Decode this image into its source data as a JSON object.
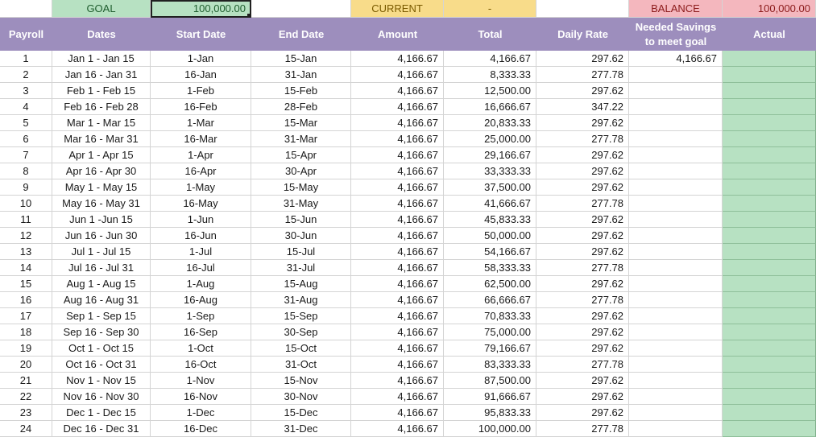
{
  "summary": {
    "goal_label": "GOAL",
    "goal_value": "100,000.00",
    "current_label": "CURRENT",
    "current_value": "-",
    "balance_label": "BALANCE",
    "balance_value": "100,000.00"
  },
  "colors": {
    "header_bg": "#9d8ebd",
    "goal_bg": "#b7e1c2",
    "current_bg": "#f8dc8a",
    "balance_bg": "#f4b7be",
    "actual_bg": "#b7e1c2"
  },
  "columns": [
    "Payroll",
    "Dates",
    "Start Date",
    "End Date",
    "Amount",
    "Total",
    "Daily Rate",
    "Needed Savings to meet goal",
    "Actual"
  ],
  "columns_display": {
    "needed_line1": "Needed Savings",
    "needed_line2": "to meet goal"
  },
  "rows": [
    {
      "payroll": "1",
      "dates": "Jan 1 - Jan 15",
      "start": "1-Jan",
      "end": "15-Jan",
      "amount": "4,166.67",
      "total": "4,166.67",
      "rate": "297.62",
      "needed": "4,166.67",
      "actual": ""
    },
    {
      "payroll": "2",
      "dates": "Jan 16 - Jan 31",
      "start": "16-Jan",
      "end": "31-Jan",
      "amount": "4,166.67",
      "total": "8,333.33",
      "rate": "277.78",
      "needed": "",
      "actual": ""
    },
    {
      "payroll": "3",
      "dates": "Feb 1 - Feb 15",
      "start": "1-Feb",
      "end": "15-Feb",
      "amount": "4,166.67",
      "total": "12,500.00",
      "rate": "297.62",
      "needed": "",
      "actual": ""
    },
    {
      "payroll": "4",
      "dates": "Feb 16 - Feb 28",
      "start": "16-Feb",
      "end": "28-Feb",
      "amount": "4,166.67",
      "total": "16,666.67",
      "rate": "347.22",
      "needed": "",
      "actual": ""
    },
    {
      "payroll": "5",
      "dates": "Mar 1 - Mar 15",
      "start": "1-Mar",
      "end": "15-Mar",
      "amount": "4,166.67",
      "total": "20,833.33",
      "rate": "297.62",
      "needed": "",
      "actual": ""
    },
    {
      "payroll": "6",
      "dates": "Mar 16 - Mar 31",
      "start": "16-Mar",
      "end": "31-Mar",
      "amount": "4,166.67",
      "total": "25,000.00",
      "rate": "277.78",
      "needed": "",
      "actual": ""
    },
    {
      "payroll": "7",
      "dates": "Apr 1 - Apr 15",
      "start": "1-Apr",
      "end": "15-Apr",
      "amount": "4,166.67",
      "total": "29,166.67",
      "rate": "297.62",
      "needed": "",
      "actual": ""
    },
    {
      "payroll": "8",
      "dates": "Apr 16 - Apr 30",
      "start": "16-Apr",
      "end": "30-Apr",
      "amount": "4,166.67",
      "total": "33,333.33",
      "rate": "297.62",
      "needed": "",
      "actual": ""
    },
    {
      "payroll": "9",
      "dates": "May 1 - May 15",
      "start": "1-May",
      "end": "15-May",
      "amount": "4,166.67",
      "total": "37,500.00",
      "rate": "297.62",
      "needed": "",
      "actual": ""
    },
    {
      "payroll": "10",
      "dates": "May 16 - May 31",
      "start": "16-May",
      "end": "31-May",
      "amount": "4,166.67",
      "total": "41,666.67",
      "rate": "277.78",
      "needed": "",
      "actual": ""
    },
    {
      "payroll": "11",
      "dates": "Jun 1 -Jun 15",
      "start": "1-Jun",
      "end": "15-Jun",
      "amount": "4,166.67",
      "total": "45,833.33",
      "rate": "297.62",
      "needed": "",
      "actual": ""
    },
    {
      "payroll": "12",
      "dates": "Jun 16 - Jun 30",
      "start": "16-Jun",
      "end": "30-Jun",
      "amount": "4,166.67",
      "total": "50,000.00",
      "rate": "297.62",
      "needed": "",
      "actual": ""
    },
    {
      "payroll": "13",
      "dates": "Jul 1 - Jul 15",
      "start": "1-Jul",
      "end": "15-Jul",
      "amount": "4,166.67",
      "total": "54,166.67",
      "rate": "297.62",
      "needed": "",
      "actual": ""
    },
    {
      "payroll": "14",
      "dates": "Jul 16 - Jul 31",
      "start": "16-Jul",
      "end": "31-Jul",
      "amount": "4,166.67",
      "total": "58,333.33",
      "rate": "277.78",
      "needed": "",
      "actual": ""
    },
    {
      "payroll": "15",
      "dates": "Aug 1 - Aug 15",
      "start": "1-Aug",
      "end": "15-Aug",
      "amount": "4,166.67",
      "total": "62,500.00",
      "rate": "297.62",
      "needed": "",
      "actual": ""
    },
    {
      "payroll": "16",
      "dates": "Aug 16 - Aug 31",
      "start": "16-Aug",
      "end": "31-Aug",
      "amount": "4,166.67",
      "total": "66,666.67",
      "rate": "277.78",
      "needed": "",
      "actual": ""
    },
    {
      "payroll": "17",
      "dates": "Sep 1 - Sep 15",
      "start": "1-Sep",
      "end": "15-Sep",
      "amount": "4,166.67",
      "total": "70,833.33",
      "rate": "297.62",
      "needed": "",
      "actual": ""
    },
    {
      "payroll": "18",
      "dates": "Sep 16 - Sep 30",
      "start": "16-Sep",
      "end": "30-Sep",
      "amount": "4,166.67",
      "total": "75,000.00",
      "rate": "297.62",
      "needed": "",
      "actual": ""
    },
    {
      "payroll": "19",
      "dates": "Oct 1 - Oct 15",
      "start": "1-Oct",
      "end": "15-Oct",
      "amount": "4,166.67",
      "total": "79,166.67",
      "rate": "297.62",
      "needed": "",
      "actual": ""
    },
    {
      "payroll": "20",
      "dates": "Oct 16 - Oct 31",
      "start": "16-Oct",
      "end": "31-Oct",
      "amount": "4,166.67",
      "total": "83,333.33",
      "rate": "277.78",
      "needed": "",
      "actual": ""
    },
    {
      "payroll": "21",
      "dates": "Nov 1 - Nov 15",
      "start": "1-Nov",
      "end": "15-Nov",
      "amount": "4,166.67",
      "total": "87,500.00",
      "rate": "297.62",
      "needed": "",
      "actual": ""
    },
    {
      "payroll": "22",
      "dates": "Nov 16 - Nov 30",
      "start": "16-Nov",
      "end": "30-Nov",
      "amount": "4,166.67",
      "total": "91,666.67",
      "rate": "297.62",
      "needed": "",
      "actual": ""
    },
    {
      "payroll": "23",
      "dates": "Dec 1 - Dec 15",
      "start": "1-Dec",
      "end": "15-Dec",
      "amount": "4,166.67",
      "total": "95,833.33",
      "rate": "297.62",
      "needed": "",
      "actual": ""
    },
    {
      "payroll": "24",
      "dates": "Dec 16 - Dec 31",
      "start": "16-Dec",
      "end": "31-Dec",
      "amount": "4,166.67",
      "total": "100,000.00",
      "rate": "277.78",
      "needed": "",
      "actual": ""
    }
  ]
}
